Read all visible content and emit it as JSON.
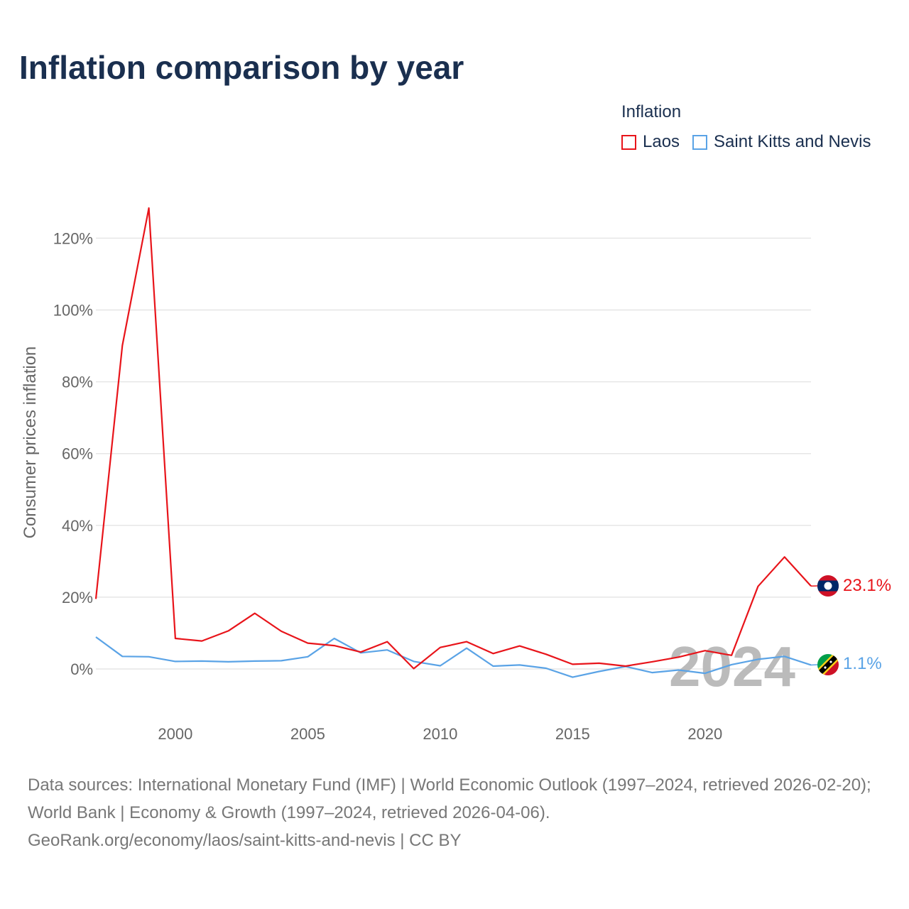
{
  "title": "Inflation comparison by year",
  "legend": {
    "title": "Inflation",
    "items": [
      {
        "label": "Laos",
        "color": "#e8141a"
      },
      {
        "label": "Saint Kitts and Nevis",
        "color": "#5aa3e6"
      }
    ]
  },
  "year_watermark": "2024",
  "chart_data": {
    "type": "line",
    "title": "Inflation comparison by year",
    "xlabel": "",
    "ylabel": "Consumer prices inflation",
    "xlim": [
      1997,
      2024
    ],
    "ylim": [
      -12,
      135
    ],
    "x_ticks": [
      2000,
      2005,
      2010,
      2015,
      2020
    ],
    "y_ticks": [
      0,
      20,
      40,
      60,
      80,
      100,
      120
    ],
    "y_tick_labels": [
      "0%",
      "20%",
      "40%",
      "60%",
      "80%",
      "100%",
      "120%"
    ],
    "x": [
      1997,
      1998,
      1999,
      2000,
      2001,
      2002,
      2003,
      2004,
      2005,
      2006,
      2007,
      2008,
      2009,
      2010,
      2011,
      2012,
      2013,
      2014,
      2015,
      2016,
      2017,
      2018,
      2019,
      2020,
      2021,
      2022,
      2023,
      2024
    ],
    "series": [
      {
        "name": "Laos",
        "color": "#e8141a",
        "values": [
          19.5,
          90.1,
          128.4,
          8.5,
          7.8,
          10.6,
          15.5,
          10.5,
          7.2,
          6.5,
          4.7,
          7.6,
          0.1,
          6.0,
          7.6,
          4.3,
          6.4,
          4.1,
          1.3,
          1.6,
          0.8,
          2.0,
          3.3,
          5.1,
          3.8,
          23.0,
          31.2,
          23.1
        ],
        "end_label": "23.1%",
        "flag": "laos-flag"
      },
      {
        "name": "Saint Kitts and Nevis",
        "color": "#5aa3e6",
        "values": [
          8.9,
          3.5,
          3.4,
          2.1,
          2.2,
          2.0,
          2.2,
          2.3,
          3.4,
          8.5,
          4.5,
          5.3,
          2.1,
          0.9,
          5.8,
          0.8,
          1.1,
          0.2,
          -2.3,
          -0.7,
          0.7,
          -1.0,
          -0.3,
          -1.2,
          1.2,
          2.7,
          3.5,
          1.1
        ],
        "end_label": "1.1%",
        "flag": "saint-kitts-and-nevis-flag"
      }
    ]
  },
  "footer": {
    "line1": "Data sources: International Monetary Fund (IMF) | World Economic Outlook (1997–2024, retrieved 2026-02-20); World Bank | Economy & Growth (1997–2024, retrieved 2026-04-06).",
    "line2": "GeoRank.org/economy/laos/saint-kitts-and-nevis | CC BY"
  }
}
